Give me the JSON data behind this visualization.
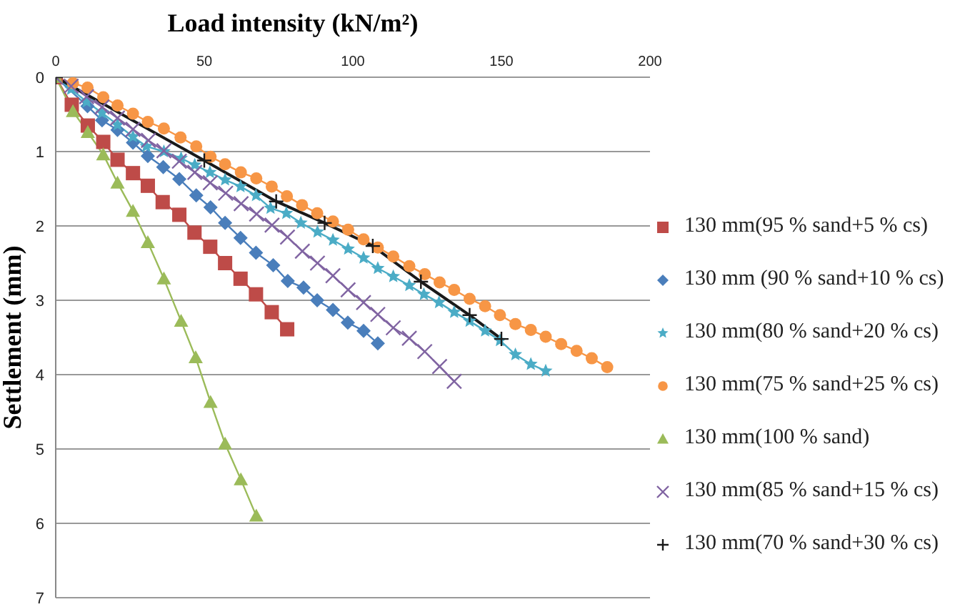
{
  "chart_data": {
    "type": "line",
    "xlabel": "Load intensity (kN/m²)",
    "ylabel": "Settlement (mm)",
    "xlim": [
      0,
      200
    ],
    "xticks": [
      0,
      50,
      100,
      150,
      200
    ],
    "ylim": [
      7,
      0
    ],
    "yticks": [
      0,
      1,
      2,
      3,
      4,
      5,
      6,
      7
    ],
    "grid": "y",
    "legend": "right",
    "line_style": "solid",
    "series": [
      {
        "name": "130 mm(95 % sand+5 % cs)",
        "color": "#be4b48",
        "marker": "square",
        "x": [
          0,
          5.4,
          10.8,
          16,
          20.8,
          26,
          31,
          36,
          41.6,
          46.7,
          52,
          57,
          62.2,
          67.4,
          72.7,
          77.9
        ],
        "values": [
          0,
          0.37,
          0.65,
          0.87,
          1.11,
          1.29,
          1.46,
          1.68,
          1.85,
          2.09,
          2.28,
          2.5,
          2.71,
          2.92,
          3.16,
          3.39
        ]
      },
      {
        "name": "130 mm (90 % sand+10 % cs)",
        "color": "#4a7ebb",
        "marker": "diamond",
        "x": [
          0,
          10.7,
          15.6,
          20.8,
          26,
          31,
          36.2,
          41.6,
          47.3,
          52.1,
          57,
          62.2,
          67.4,
          73.2,
          78.1,
          83.4,
          88,
          93.3,
          98.3,
          103.6,
          108.4
        ],
        "values": [
          0,
          0.39,
          0.58,
          0.71,
          0.88,
          1.06,
          1.21,
          1.37,
          1.59,
          1.75,
          1.96,
          2.16,
          2.36,
          2.53,
          2.74,
          2.83,
          3.0,
          3.13,
          3.3,
          3.41,
          3.58
        ]
      },
      {
        "name": "130 mm(80 % sand+20 % cs)",
        "color": "#4bacc6",
        "marker": "star",
        "x": [
          0,
          5.2,
          10.4,
          15.6,
          20.8,
          26,
          30.5,
          36.4,
          42.2,
          46.8,
          51.9,
          57,
          62.2,
          67.4,
          72.3,
          77.6,
          82.5,
          88.1,
          93.3,
          98.4,
          103.6,
          108.4,
          113.6,
          119,
          123.9,
          129,
          134.1,
          139.3,
          144.5,
          149.5,
          154.7,
          159.9,
          164.9
        ],
        "values": [
          0,
          0.16,
          0.33,
          0.48,
          0.64,
          0.8,
          0.93,
          1.0,
          1.09,
          1.18,
          1.28,
          1.38,
          1.47,
          1.59,
          1.76,
          1.83,
          1.96,
          2.08,
          2.19,
          2.31,
          2.43,
          2.57,
          2.68,
          2.8,
          2.92,
          3.03,
          3.16,
          3.28,
          3.41,
          3.54,
          3.73,
          3.86,
          3.95
        ]
      },
      {
        "name": "130 mm(75 % sand+25 % cs)",
        "color": "#f79646",
        "marker": "circle",
        "x": [
          0,
          5.8,
          10.7,
          16,
          20.8,
          26,
          31,
          36.4,
          42,
          47.3,
          52.1,
          57,
          62.3,
          67.5,
          72.7,
          77.8,
          82.9,
          88,
          93.3,
          98.4,
          103.6,
          108.4,
          113.6,
          119,
          124.2,
          129.2,
          134.1,
          139.3,
          144.5,
          149.5,
          154.7,
          159.9,
          164.9,
          170.1,
          175.3,
          180.4,
          185.6
        ],
        "values": [
          0,
          0.08,
          0.14,
          0.27,
          0.38,
          0.49,
          0.6,
          0.69,
          0.81,
          0.93,
          1.07,
          1.17,
          1.28,
          1.36,
          1.47,
          1.6,
          1.72,
          1.83,
          1.94,
          2.05,
          2.18,
          2.29,
          2.41,
          2.54,
          2.65,
          2.76,
          2.86,
          2.98,
          3.08,
          3.2,
          3.32,
          3.4,
          3.49,
          3.59,
          3.68,
          3.78,
          3.9
        ]
      },
      {
        "name": "130 mm(100 % sand)",
        "color": "#9bbb59",
        "marker": "triangle",
        "x": [
          0,
          5.8,
          10.8,
          16,
          20.8,
          26,
          31,
          36.4,
          42.2,
          47.1,
          52.1,
          57,
          62.3,
          67.5
        ],
        "values": [
          0,
          0.46,
          0.74,
          1.04,
          1.42,
          1.8,
          2.22,
          2.71,
          3.28,
          3.77,
          4.37,
          4.93,
          5.41,
          5.9
        ]
      },
      {
        "name": "130 mm(85 % sand+15 % cs)",
        "color": "#8064a2",
        "marker": "cross",
        "x": [
          0,
          5.2,
          10.4,
          15.6,
          20.8,
          26,
          31.2,
          36.4,
          41.6,
          46.8,
          52,
          57.2,
          62.4,
          67.6,
          72.8,
          78,
          83,
          88.1,
          93.3,
          98.4,
          103.6,
          108.4,
          113.6,
          119,
          124.2,
          129.2,
          134.1
        ],
        "values": [
          0,
          0.12,
          0.26,
          0.4,
          0.55,
          0.7,
          0.85,
          0.99,
          1.13,
          1.28,
          1.42,
          1.56,
          1.7,
          1.84,
          1.99,
          2.15,
          2.34,
          2.5,
          2.67,
          2.86,
          3.03,
          3.19,
          3.37,
          3.51,
          3.69,
          3.89,
          4.09
        ]
      },
      {
        "name": "130 mm(70 % sand+30 % cs)",
        "color": "#1a1a1a",
        "marker": "plus",
        "x": [
          0,
          50,
          74.2,
          90.5,
          106.7,
          122.9,
          139.3,
          150
        ],
        "values": [
          0,
          1.12,
          1.67,
          1.96,
          2.27,
          2.75,
          3.2,
          3.52
        ]
      }
    ]
  }
}
